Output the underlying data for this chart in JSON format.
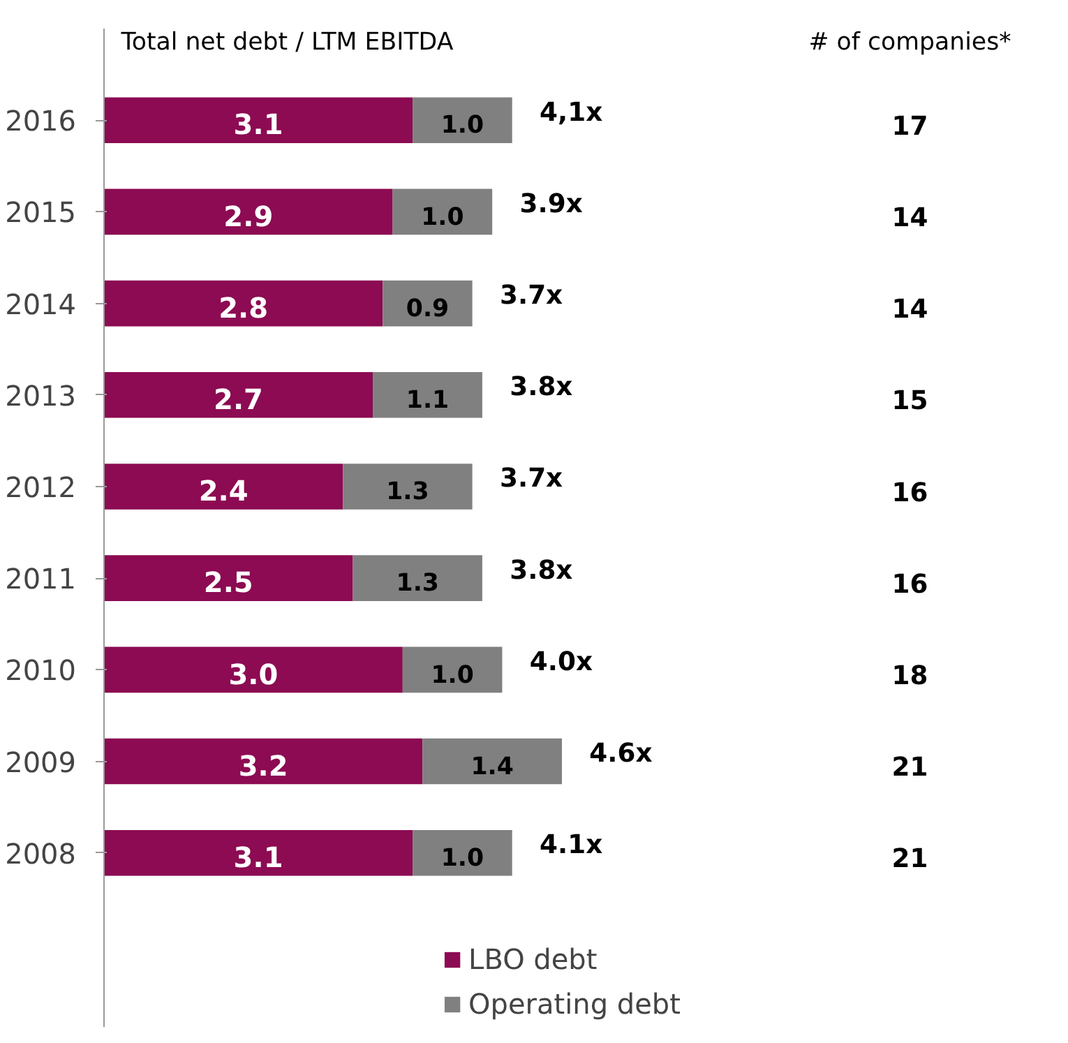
{
  "chart_data": {
    "type": "bar",
    "orientation": "horizontal",
    "stacked": true,
    "title": "Total net debt / LTM EBITDA",
    "categories": [
      "2016",
      "2015",
      "2014",
      "2013",
      "2012",
      "2011",
      "2010",
      "2009",
      "2008"
    ],
    "series": [
      {
        "name": "LBO debt",
        "color": "#8c0b52",
        "values": [
          3.1,
          2.9,
          2.8,
          2.7,
          2.4,
          2.5,
          3.0,
          3.2,
          3.1
        ],
        "value_labels": [
          "3.1",
          "2.9",
          "2.8",
          "2.7",
          "2.4",
          "2.5",
          "3.0",
          "3.2",
          "3.1"
        ]
      },
      {
        "name": "Operating debt",
        "color": "#808080",
        "values": [
          1.0,
          1.0,
          0.9,
          1.1,
          1.3,
          1.3,
          1.0,
          1.4,
          1.0
        ],
        "value_labels": [
          "1.0",
          "1.0",
          "0.9",
          "1.1",
          "1.3",
          "1.3",
          "1.0",
          "1.4",
          "1.0"
        ]
      }
    ],
    "totals": [
      "4,1x",
      "3.9x",
      "3.7x",
      "3.8x",
      "3.7x",
      "3.8x",
      "4.0x",
      "4.6x",
      "4.1x"
    ],
    "annotations": [
      "# of companies*",
      "17",
      "14",
      "14",
      "15",
      "16",
      "16",
      "18",
      "21",
      "21"
    ],
    "grid": false,
    "legend": "bottom"
  }
}
